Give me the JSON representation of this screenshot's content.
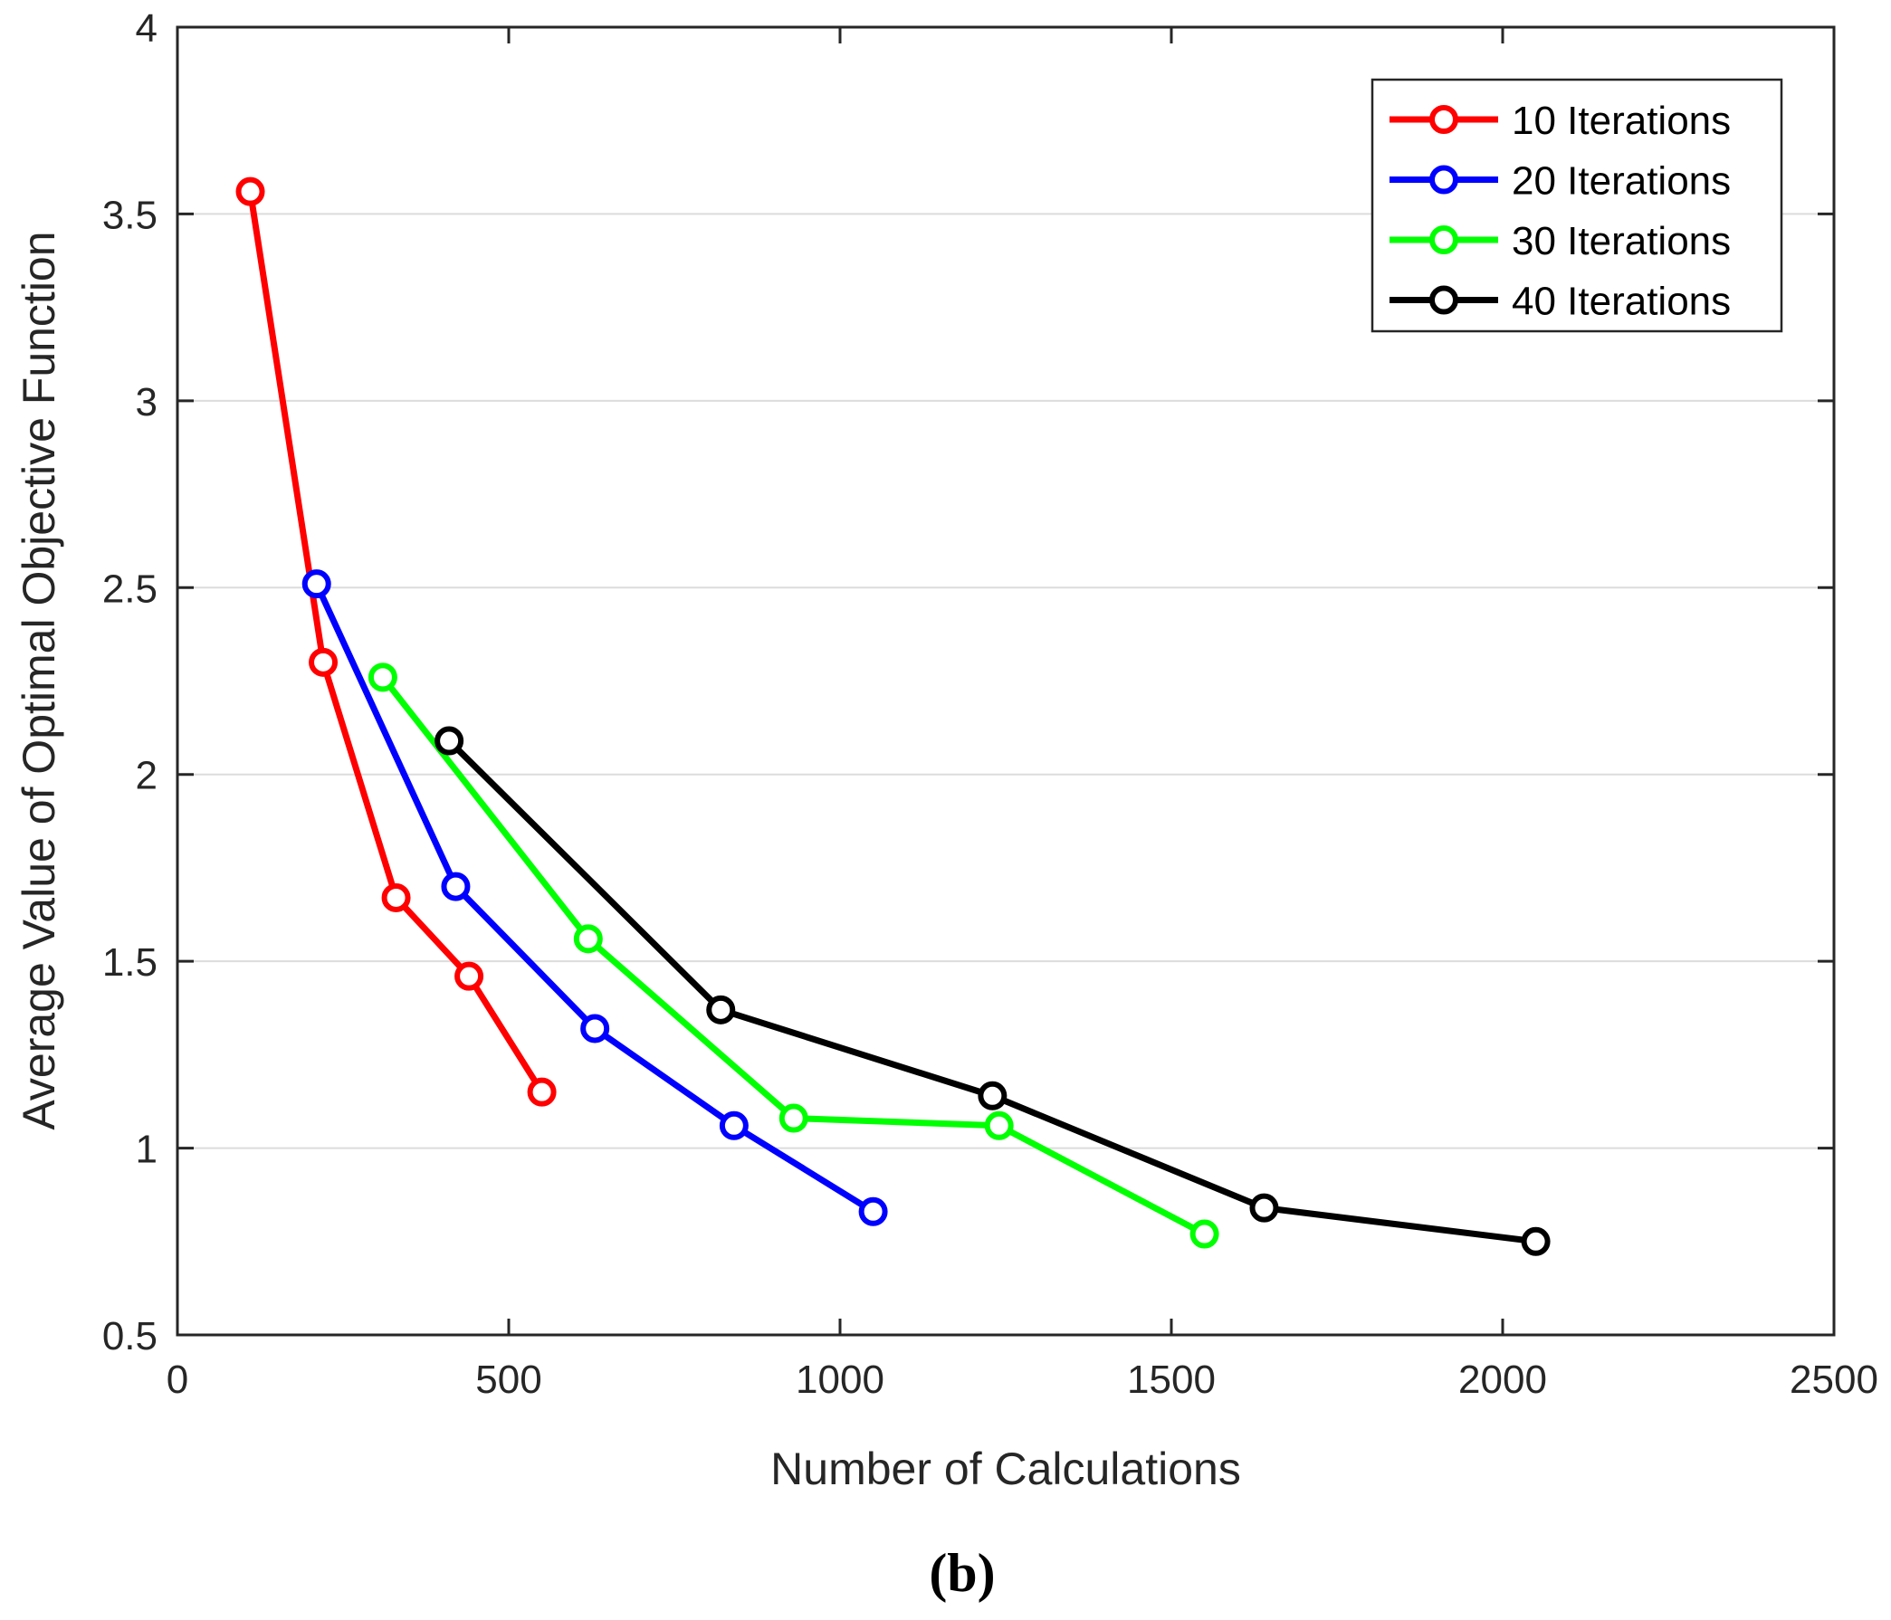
{
  "chart_data": {
    "type": "line",
    "title": "",
    "xlabel": "Number of Calculations",
    "ylabel": "Average Value of Optimal Objective Function",
    "xlim": [
      0,
      2500
    ],
    "ylim": [
      0.5,
      4
    ],
    "xticks": [
      0,
      500,
      1000,
      1500,
      2000,
      2500
    ],
    "yticks": [
      0.5,
      1,
      1.5,
      2,
      2.5,
      3,
      3.5,
      4
    ],
    "xtick_labels": [
      "0",
      "500",
      "1000",
      "1500",
      "2000",
      "2500"
    ],
    "ytick_labels": [
      "0.5",
      "1",
      "1.5",
      "2",
      "2.5",
      "3",
      "3.5",
      "4"
    ],
    "grid": "horizontal",
    "legend_position": "top-right",
    "marker": "circle",
    "series": [
      {
        "name": "10 Iterations",
        "color": "#ff0000",
        "x": [
          110,
          220,
          330,
          440,
          550
        ],
        "y": [
          3.56,
          2.3,
          1.67,
          1.46,
          1.15
        ]
      },
      {
        "name": "20 Iterations",
        "color": "#0000ff",
        "x": [
          210,
          420,
          630,
          840,
          1050
        ],
        "y": [
          2.51,
          1.7,
          1.32,
          1.06,
          0.83
        ]
      },
      {
        "name": "30 Iterations",
        "color": "#00ff00",
        "x": [
          310,
          620,
          930,
          1240,
          1550
        ],
        "y": [
          2.26,
          1.56,
          1.08,
          1.06,
          0.77
        ]
      },
      {
        "name": "40 Iterations",
        "color": "#000000",
        "x": [
          410,
          820,
          1230,
          1640,
          2050
        ],
        "y": [
          2.09,
          1.37,
          1.14,
          0.84,
          0.75
        ]
      }
    ]
  },
  "panel_label": "(b)"
}
